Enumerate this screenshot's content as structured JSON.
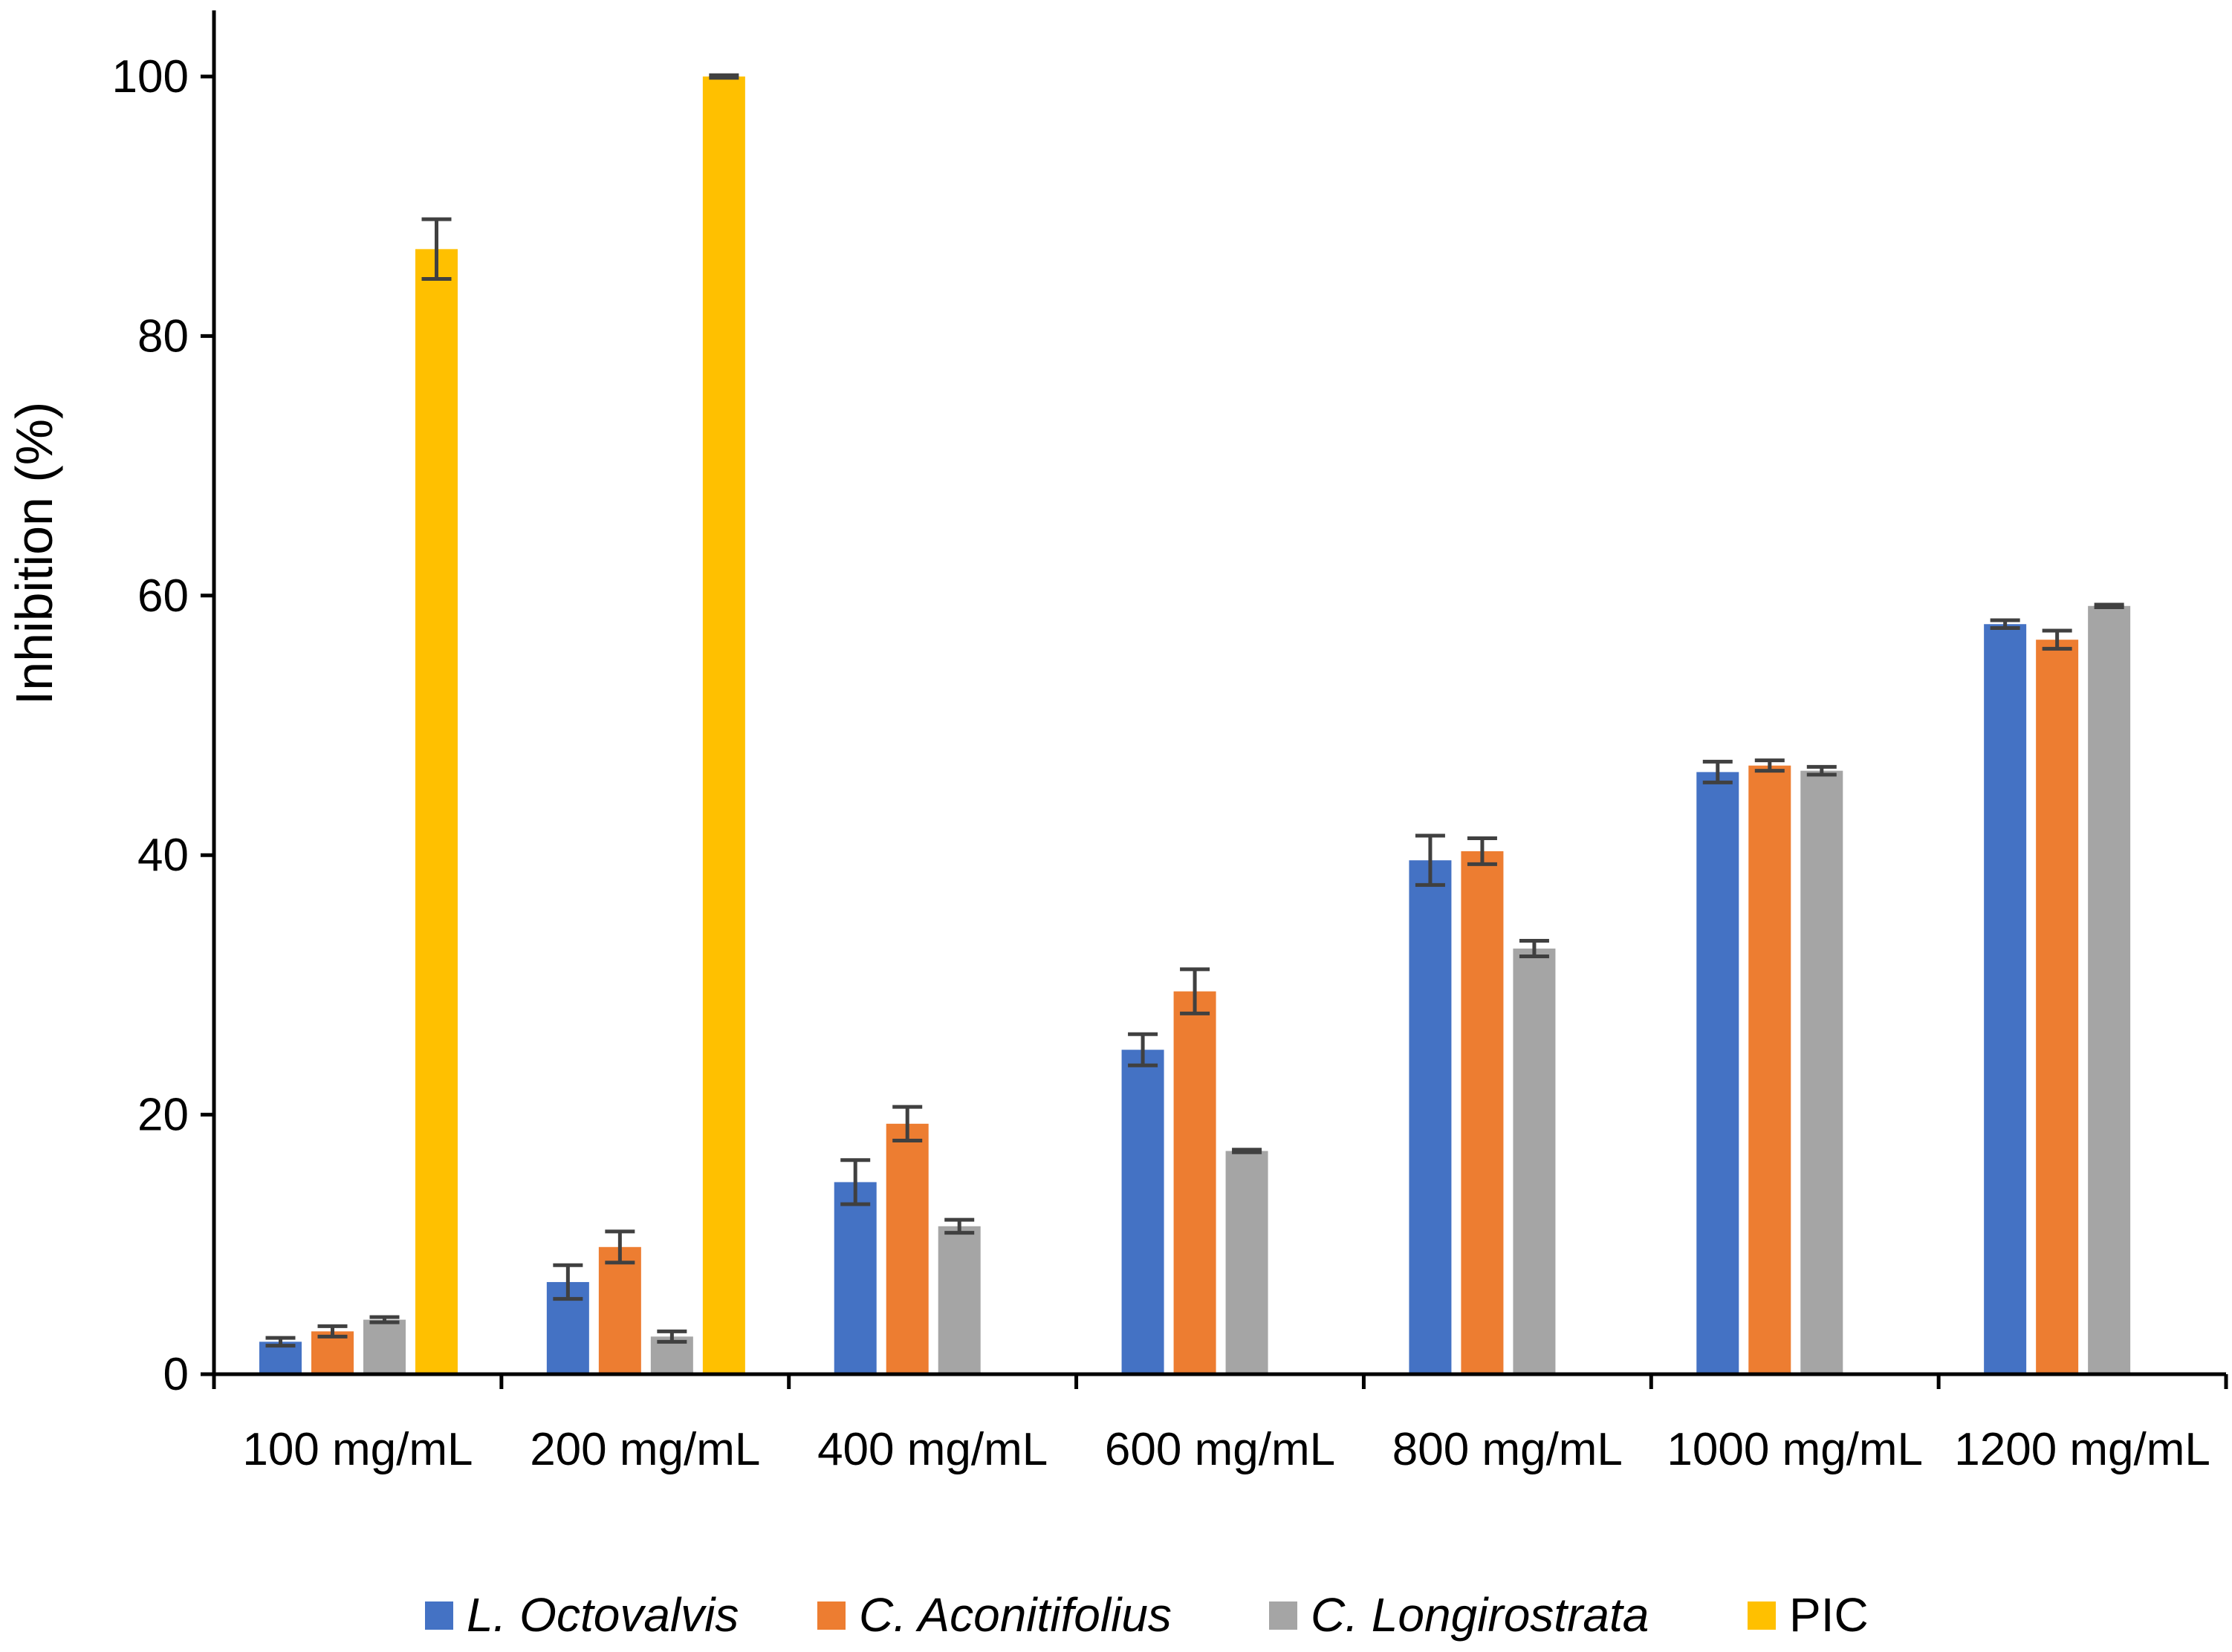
{
  "chart_data": {
    "type": "bar",
    "title": "",
    "xlabel": "",
    "ylabel": "Inhibition (%)",
    "ylim": [
      0,
      100
    ],
    "yticks": [
      0,
      20,
      40,
      60,
      80,
      100
    ],
    "grid": false,
    "legend_position": "bottom",
    "categories": [
      "100 mg/mL",
      "200 mg/mL",
      "400 mg/mL",
      "600 mg/mL",
      "800 mg/mL",
      "1000 mg/mL",
      "1200 mg/mL"
    ],
    "series": [
      {
        "name": "L. Octovalvis",
        "italic": true,
        "color": "#4472C4",
        "values": [
          2.5,
          7.1,
          14.8,
          25.0,
          39.6,
          46.4,
          57.8
        ],
        "errors": [
          0.3,
          1.3,
          1.7,
          1.2,
          1.9,
          0.8,
          0.3
        ]
      },
      {
        "name": "C. Aconitifolius",
        "italic": true,
        "color": "#ED7D31",
        "values": [
          3.3,
          9.8,
          19.3,
          29.5,
          40.3,
          46.9,
          56.6
        ],
        "errors": [
          0.4,
          1.2,
          1.3,
          1.7,
          1.0,
          0.4,
          0.7
        ]
      },
      {
        "name": "C. Longirostrata",
        "italic": true,
        "color": "#A5A5A5",
        "values": [
          4.2,
          2.9,
          11.4,
          17.2,
          32.8,
          46.5,
          59.2
        ],
        "errors": [
          0.2,
          0.4,
          0.5,
          0.1,
          0.6,
          0.3,
          0.1
        ]
      },
      {
        "name": "PIC",
        "italic": false,
        "color": "#FFC000",
        "values": [
          86.7,
          100,
          null,
          null,
          null,
          null,
          null
        ],
        "errors": [
          2.3,
          0.1,
          null,
          null,
          null,
          null,
          null
        ]
      }
    ]
  }
}
